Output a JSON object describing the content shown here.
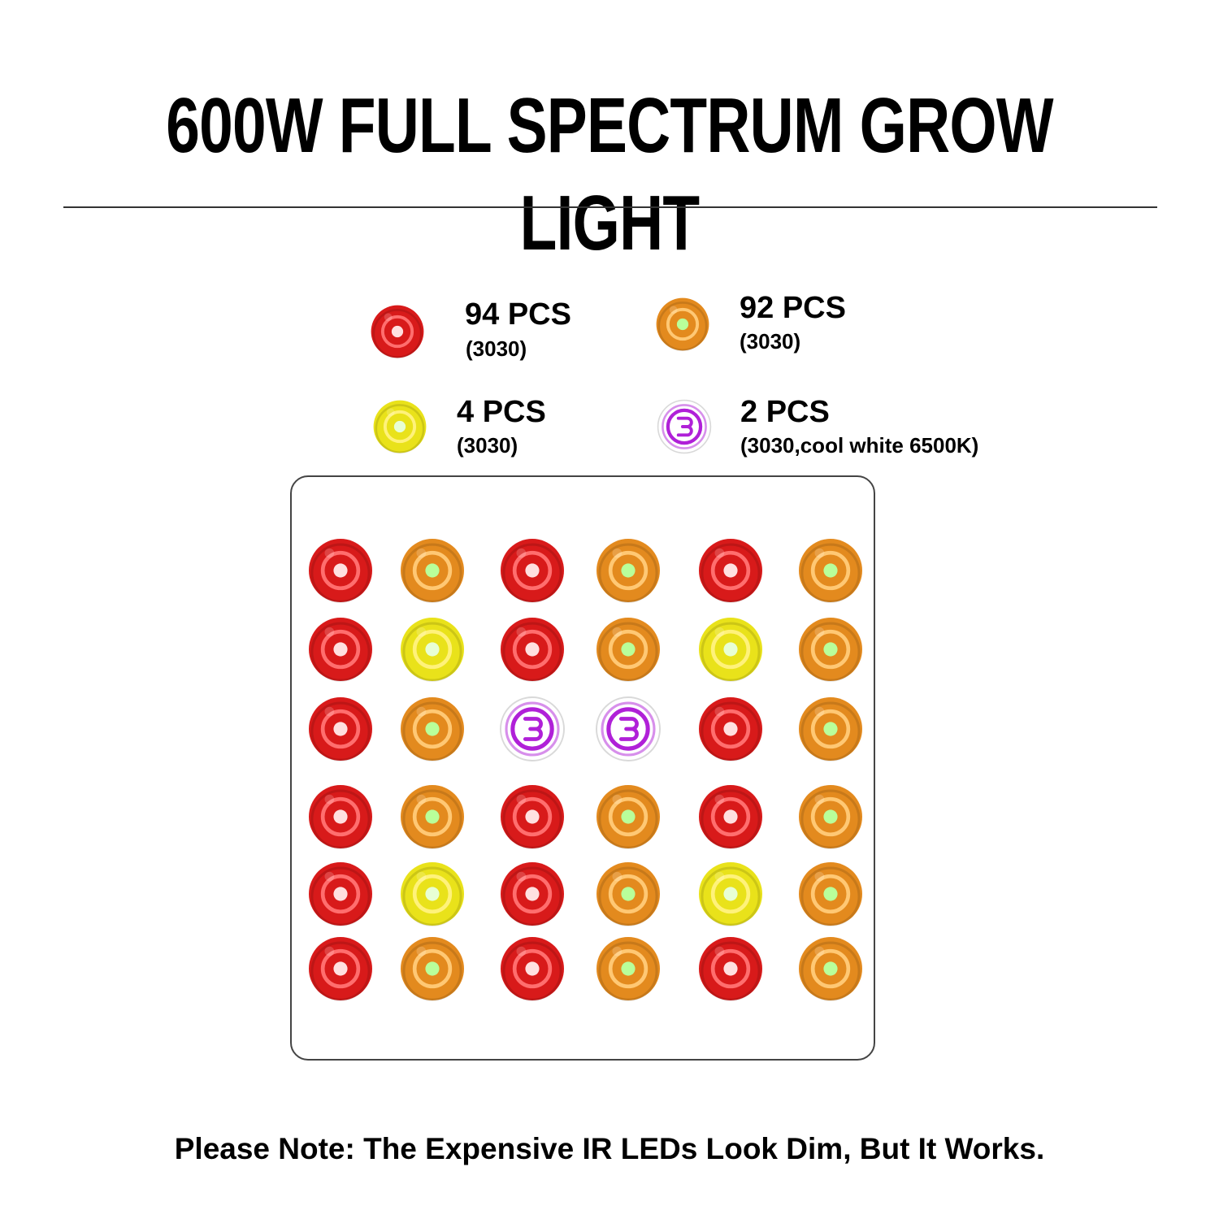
{
  "title": "600W FULL SPECTRUM GROW LIGHT",
  "legend": [
    {
      "type": "red",
      "count": "94 PCS",
      "spec": "(3030)"
    },
    {
      "type": "orange",
      "count": "92 PCS",
      "spec": "(3030)"
    },
    {
      "type": "yellow",
      "count": "4 PCS",
      "spec": "(3030)"
    },
    {
      "type": "white",
      "count": "2 PCS",
      "spec": "(3030,cool white 6500K)"
    }
  ],
  "led_colors": {
    "red": {
      "outer": "#d81a1a",
      "ring": "#ff6e6e",
      "center": "#ffe0e0"
    },
    "orange": {
      "outer": "#e38a1e",
      "ring": "#ffc874",
      "center": "#b9ff9a"
    },
    "yellow": {
      "outer": "#e9e21a",
      "ring": "#fff27a",
      "center": "#e8ffd4"
    },
    "white": {
      "outer": "#ffffff",
      "ring": "#b020d8",
      "center": "#ffffff"
    }
  },
  "panel_grid": [
    [
      "red",
      "orange",
      "red",
      "orange",
      "red",
      "orange"
    ],
    [
      "red",
      "yellow",
      "red",
      "orange",
      "yellow",
      "orange"
    ],
    [
      "red",
      "orange",
      "white",
      "white",
      "red",
      "orange"
    ],
    [
      "red",
      "orange",
      "red",
      "orange",
      "red",
      "orange"
    ],
    [
      "red",
      "yellow",
      "red",
      "orange",
      "yellow",
      "orange"
    ],
    [
      "red",
      "orange",
      "red",
      "orange",
      "red",
      "orange"
    ]
  ],
  "note": "Please Note: The Expensive IR LEDs Look Dim, But It Works."
}
